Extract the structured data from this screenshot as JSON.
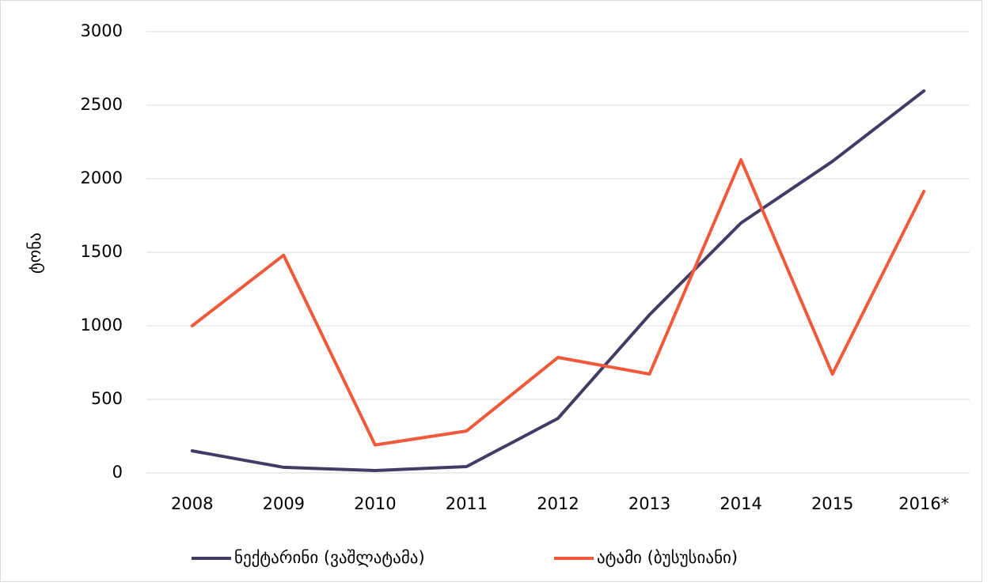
{
  "chart_data": {
    "type": "line",
    "y_label": "ტონა",
    "categories": [
      "2008",
      "2009",
      "2010",
      "2011",
      "2012",
      "2013",
      "2014",
      "2015",
      "2016*"
    ],
    "series": [
      {
        "name": "ნექტარინი (ვაშლატამა)",
        "color": "#443a66",
        "values": [
          150,
          38,
          16,
          43,
          371,
          1075,
          1699,
          2118,
          2597
        ]
      },
      {
        "name": "ატამი (ბუსუსიანი)",
        "color": "#f05a3a",
        "values": [
          1000,
          1480,
          190,
          285,
          785,
          672,
          2129,
          672,
          1914
        ]
      }
    ],
    "ylim": [
      0,
      3000
    ],
    "yticks": [
      0,
      500,
      1000,
      1500,
      2000,
      2500,
      3000
    ],
    "grid": true,
    "legend": "bottom"
  }
}
